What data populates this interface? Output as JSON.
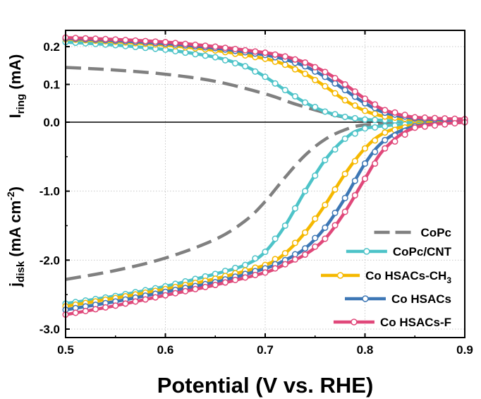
{
  "chart_data": {
    "type": "line",
    "title": "",
    "xlabel": "Potential (V vs. RHE)",
    "xlim": [
      0.5,
      0.9
    ],
    "x_ticks": [
      0.5,
      0.6,
      0.7,
      0.8,
      0.9
    ],
    "x_tick_labels": [
      "0.5",
      "0.6",
      "0.7",
      "0.8",
      "0.9"
    ],
    "ring_panel": {
      "ylabel": "I_ring (mA)",
      "ylabel_main": "I",
      "ylabel_sub": "ring",
      "ylabel_tail": " (mA)",
      "ylim": [
        0.0,
        0.23
      ],
      "y_ticks": [
        0.0,
        0.1,
        0.2
      ],
      "y_tick_labels": [
        "0.0",
        "0.1",
        "0.2"
      ]
    },
    "disk_panel": {
      "ylabel": "j_disk (mA cm^-2)",
      "ylabel_main": "j",
      "ylabel_sub": "disk",
      "ylabel_mid": " (mA cm",
      "ylabel_sup": "-2",
      "ylabel_tail": ")",
      "ylim": [
        -3.0,
        0.0
      ],
      "y_ticks": [
        -1.0,
        -2.0,
        -3.0
      ],
      "y_tick_labels": [
        "-1.0",
        "-2.0",
        "-3.0"
      ]
    },
    "legend_position": "bottom-right",
    "series": [
      {
        "name": "CoPc",
        "color": "#808080",
        "style": "dashed",
        "markers": false,
        "ring": {
          "x": [
            0.5,
            0.55,
            0.6,
            0.65,
            0.7,
            0.73,
            0.76,
            0.78,
            0.8,
            0.85,
            0.9
          ],
          "y": [
            0.145,
            0.138,
            0.127,
            0.108,
            0.075,
            0.048,
            0.025,
            0.013,
            0.006,
            0.002,
            0.001
          ]
        },
        "disk": {
          "x": [
            0.5,
            0.55,
            0.6,
            0.65,
            0.68,
            0.7,
            0.72,
            0.74,
            0.76,
            0.78,
            0.8,
            0.85,
            0.9
          ],
          "y": [
            -2.28,
            -2.15,
            -1.97,
            -1.7,
            -1.43,
            -1.15,
            -0.8,
            -0.48,
            -0.25,
            -0.11,
            -0.04,
            -0.01,
            0.0
          ]
        }
      },
      {
        "name": "CoPc/CNT",
        "color": "#4DC3C8",
        "style": "solid",
        "markers": true,
        "ring": {
          "x": [
            0.5,
            0.55,
            0.6,
            0.65,
            0.68,
            0.7,
            0.72,
            0.74,
            0.76,
            0.78,
            0.8,
            0.85,
            0.9
          ],
          "y": [
            0.212,
            0.204,
            0.192,
            0.172,
            0.148,
            0.12,
            0.085,
            0.052,
            0.028,
            0.014,
            0.007,
            0.002,
            0.001
          ]
        },
        "disk": {
          "x": [
            0.5,
            0.55,
            0.6,
            0.65,
            0.68,
            0.7,
            0.72,
            0.74,
            0.76,
            0.78,
            0.8,
            0.85,
            0.9
          ],
          "y": [
            -2.63,
            -2.52,
            -2.38,
            -2.2,
            -2.07,
            -1.88,
            -1.5,
            -1.0,
            -0.55,
            -0.24,
            -0.09,
            -0.02,
            0.0
          ]
        }
      },
      {
        "name": "Co HSACs-CH3",
        "label_main": "Co HSACs-CH",
        "label_sub": "3",
        "color": "#F5B800",
        "style": "solid",
        "markers": true,
        "ring": {
          "x": [
            0.5,
            0.55,
            0.6,
            0.65,
            0.7,
            0.72,
            0.74,
            0.76,
            0.78,
            0.8,
            0.82,
            0.85,
            0.9
          ],
          "y": [
            0.22,
            0.213,
            0.204,
            0.19,
            0.168,
            0.152,
            0.128,
            0.095,
            0.058,
            0.03,
            0.015,
            0.006,
            0.002
          ]
        },
        "disk": {
          "x": [
            0.5,
            0.55,
            0.6,
            0.65,
            0.7,
            0.72,
            0.74,
            0.76,
            0.78,
            0.8,
            0.82,
            0.85,
            0.9
          ],
          "y": [
            -2.67,
            -2.55,
            -2.42,
            -2.27,
            -2.07,
            -1.9,
            -1.6,
            -1.2,
            -0.75,
            -0.38,
            -0.15,
            -0.04,
            0.0
          ]
        }
      },
      {
        "name": "Co HSACs",
        "color": "#3D77B5",
        "style": "solid",
        "markers": true,
        "ring": {
          "x": [
            0.5,
            0.55,
            0.6,
            0.65,
            0.7,
            0.72,
            0.74,
            0.76,
            0.78,
            0.8,
            0.82,
            0.85,
            0.9
          ],
          "y": [
            0.222,
            0.216,
            0.208,
            0.196,
            0.178,
            0.166,
            0.148,
            0.12,
            0.085,
            0.05,
            0.025,
            0.01,
            0.004
          ]
        },
        "disk": {
          "x": [
            0.5,
            0.55,
            0.6,
            0.65,
            0.7,
            0.72,
            0.74,
            0.76,
            0.78,
            0.8,
            0.82,
            0.85,
            0.9
          ],
          "y": [
            -2.72,
            -2.6,
            -2.46,
            -2.32,
            -2.12,
            -2.0,
            -1.83,
            -1.53,
            -1.1,
            -0.6,
            -0.26,
            -0.06,
            0.0
          ]
        }
      },
      {
        "name": "Co HSACs-F",
        "color": "#E0487A",
        "style": "solid",
        "markers": true,
        "ring": {
          "x": [
            0.5,
            0.55,
            0.6,
            0.65,
            0.7,
            0.72,
            0.74,
            0.76,
            0.78,
            0.8,
            0.82,
            0.85,
            0.9
          ],
          "y": [
            0.224,
            0.219,
            0.212,
            0.2,
            0.184,
            0.174,
            0.158,
            0.133,
            0.1,
            0.062,
            0.032,
            0.013,
            0.008
          ]
        },
        "disk": {
          "x": [
            0.5,
            0.55,
            0.6,
            0.65,
            0.7,
            0.72,
            0.74,
            0.76,
            0.78,
            0.8,
            0.82,
            0.85,
            0.9
          ],
          "y": [
            -2.79,
            -2.66,
            -2.51,
            -2.36,
            -2.18,
            -2.06,
            -1.92,
            -1.69,
            -1.3,
            -0.82,
            -0.38,
            -0.08,
            0.0
          ]
        }
      }
    ]
  }
}
